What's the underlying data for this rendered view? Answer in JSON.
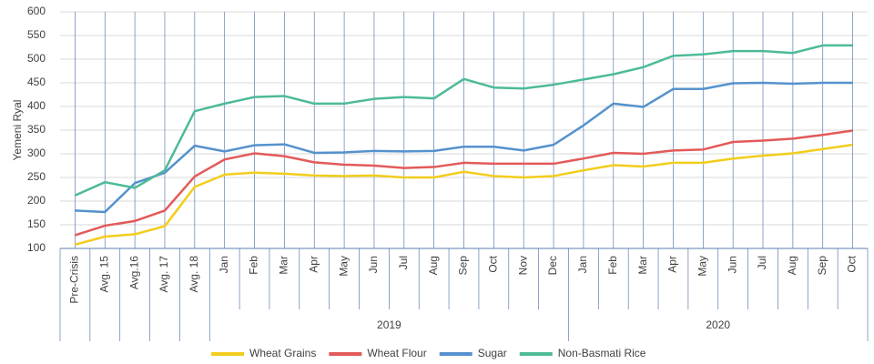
{
  "chart_data": {
    "type": "line",
    "y_label": "Yemeni Ryal",
    "categories": [
      "Pre-Crisis",
      "Avg. 15",
      "Avg.16",
      "Avg. 17",
      "Avg. 18",
      "Jan",
      "Feb",
      "Mar",
      "Apr",
      "May",
      "Jun",
      "Jul",
      "Aug",
      "Sep",
      "Oct",
      "Nov",
      "Dec",
      "Jan",
      "Feb",
      "Mar",
      "Apr",
      "May",
      "Jun",
      "Jul",
      "Aug",
      "Sep",
      "Oct"
    ],
    "groups": [
      {
        "label": "2019",
        "start": 5,
        "end": 16
      },
      {
        "label": "2020",
        "start": 17,
        "end": 26
      }
    ],
    "series": [
      {
        "name": "Wheat Grains",
        "color": "#f2cd1d",
        "values": [
          108,
          125,
          130,
          147,
          230,
          256,
          260,
          258,
          254,
          253,
          254,
          250,
          250,
          262,
          253,
          250,
          253,
          265,
          276,
          273,
          281,
          281,
          290,
          296,
          301,
          310,
          319
        ]
      },
      {
        "name": "Wheat Flour",
        "color": "#e35a5a",
        "values": [
          128,
          148,
          158,
          180,
          252,
          288,
          301,
          295,
          282,
          277,
          275,
          270,
          272,
          281,
          279,
          279,
          279,
          290,
          302,
          300,
          307,
          309,
          325,
          328,
          332,
          340,
          349
        ]
      },
      {
        "name": "Sugar",
        "color": "#5592cd",
        "values": [
          180,
          177,
          238,
          260,
          317,
          305,
          318,
          320,
          302,
          303,
          306,
          305,
          306,
          315,
          315,
          307,
          319,
          360,
          406,
          399,
          437,
          437,
          449,
          450,
          448,
          450,
          450
        ]
      },
      {
        "name": "Non-Basmati Rice",
        "color": "#4dbb95",
        "values": [
          212,
          240,
          228,
          265,
          390,
          406,
          420,
          422,
          406,
          406,
          416,
          420,
          417,
          458,
          440,
          438,
          446,
          457,
          468,
          483,
          507,
          510,
          517,
          517,
          513,
          529,
          529
        ]
      }
    ],
    "ylim": [
      100,
      600
    ],
    "yticks": [
      100,
      150,
      200,
      250,
      300,
      350,
      400,
      450,
      500,
      550,
      600
    ],
    "grid": true
  }
}
